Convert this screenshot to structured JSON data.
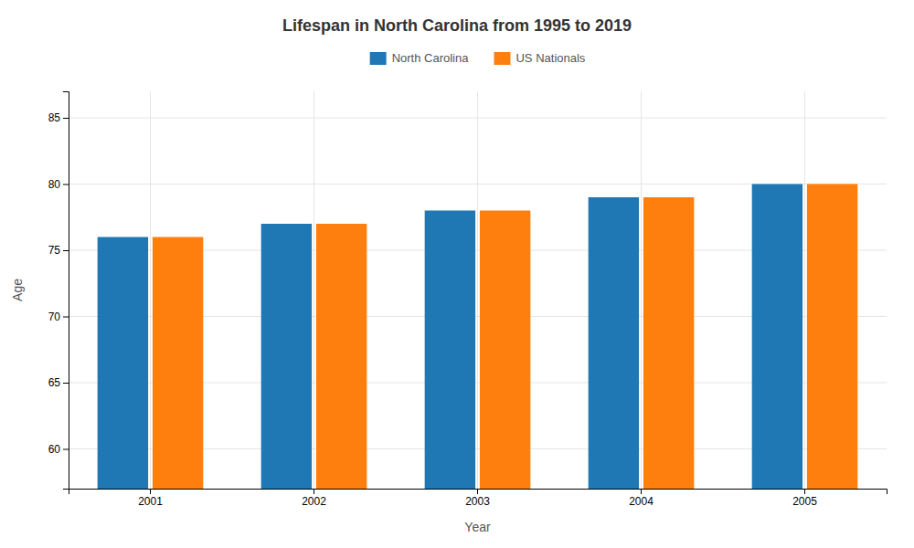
{
  "chart_data": {
    "type": "bar",
    "title": "Lifespan in North Carolina from 1995 to 2019",
    "xlabel": "Year",
    "ylabel": "Age",
    "categories": [
      "2001",
      "2002",
      "2003",
      "2004",
      "2005"
    ],
    "series": [
      {
        "name": "North Carolina",
        "values": [
          76,
          77,
          78,
          79,
          80
        ]
      },
      {
        "name": "US Nationals",
        "values": [
          76,
          77,
          78,
          79,
          80
        ]
      }
    ],
    "ylim": [
      57,
      87
    ],
    "yticks": [
      60,
      65,
      70,
      75,
      80,
      85
    ],
    "grid": true,
    "legend": "top"
  }
}
